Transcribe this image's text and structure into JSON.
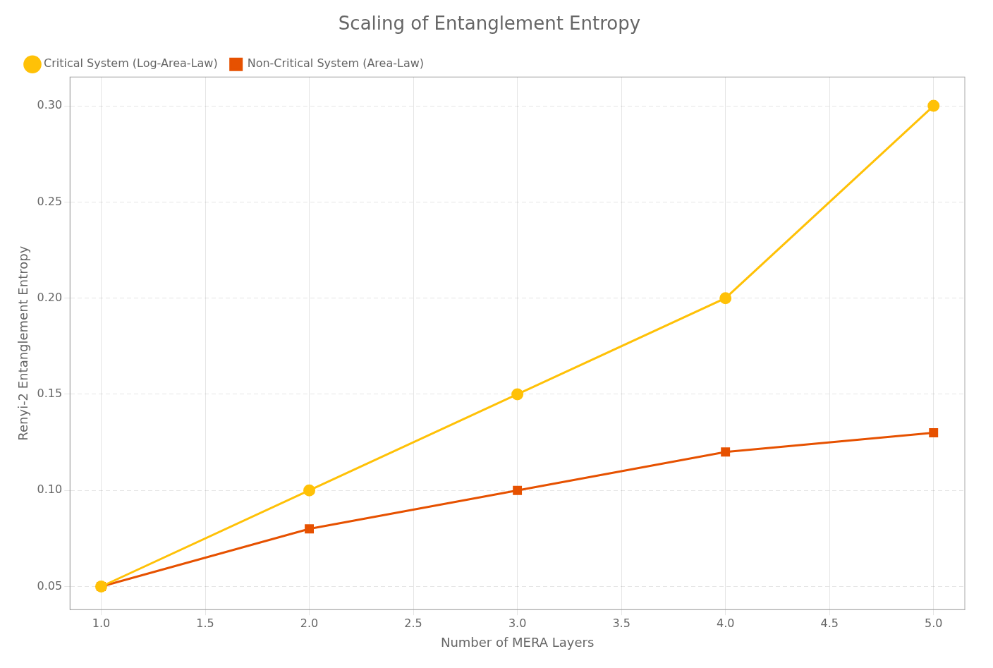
{
  "chart_data": {
    "type": "line",
    "title": "Scaling of Entanglement Entropy",
    "xlabel": "Number of MERA Layers",
    "ylabel": "Renyi-2 Entanglement Entropy",
    "x": [
      1,
      2,
      3,
      4,
      5
    ],
    "series": [
      {
        "name": "Critical System (Log-Area-Law)",
        "color": "#FFC107",
        "marker": "circle",
        "values": [
          0.05,
          0.1,
          0.15,
          0.2,
          0.3
        ]
      },
      {
        "name": "Non-Critical System (Area-Law)",
        "color": "#E65100",
        "marker": "square",
        "values": [
          0.05,
          0.08,
          0.1,
          0.12,
          0.13
        ]
      }
    ],
    "xlim": [
      0.85,
      5.15
    ],
    "ylim": [
      0.038,
      0.315
    ],
    "xticks": [
      {
        "value": 1.0,
        "label": "1.0"
      },
      1.5,
      {
        "value": 2.0,
        "label": "2.0"
      },
      2.5,
      {
        "value": 3.0,
        "label": "3.0"
      },
      3.5,
      {
        "value": 4.0,
        "label": "4.0"
      },
      4.5,
      {
        "value": 5.0,
        "label": "5.0"
      }
    ],
    "yticks": [
      0.05,
      {
        "value": 0.1,
        "label": "0.10"
      },
      0.15,
      {
        "value": 0.2,
        "label": "0.20"
      },
      0.25,
      {
        "value": 0.3,
        "label": "0.30"
      }
    ],
    "grid": true,
    "legend": "upper left"
  }
}
